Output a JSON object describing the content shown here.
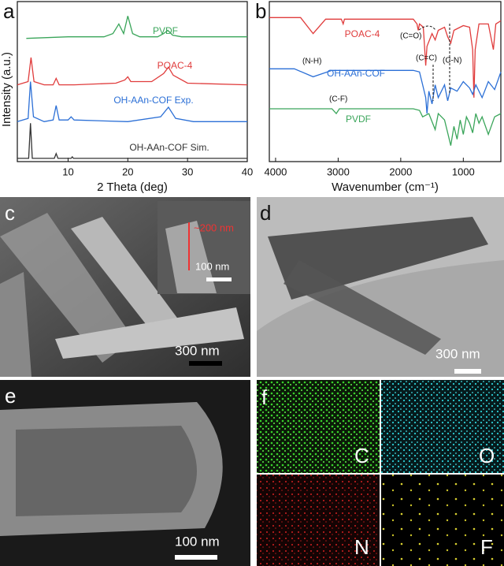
{
  "chart_data": [
    {
      "type": "line",
      "panel": "a",
      "xlabel": "2 Theta (deg)",
      "ylabel": "Intensity (a.u.)",
      "xlim": [
        1.5,
        40
      ],
      "xticks": [
        10,
        20,
        30,
        40
      ],
      "ylim": [
        0,
        100
      ],
      "series": [
        {
          "name": "PVDF",
          "color": "#3aa55a",
          "x": [
            3,
            10,
            16,
            17.5,
            18.5,
            19.3,
            20,
            20.8,
            22,
            25,
            26,
            26.7,
            27.5,
            29,
            40
          ],
          "values": [
            77,
            78,
            78,
            80,
            86,
            80,
            91,
            80,
            78,
            78,
            80,
            82,
            79,
            78,
            78
          ]
        },
        {
          "name": "POAC-4",
          "color": "#e03c3c",
          "x": [
            1.5,
            3.3,
            3.8,
            4.3,
            6,
            7.5,
            8,
            8.5,
            11,
            18,
            19.5,
            20,
            20.5,
            24,
            26,
            26.8,
            27.6,
            30,
            40
          ],
          "values": [
            48,
            50,
            65,
            50,
            48,
            48,
            52,
            48,
            48,
            49,
            51,
            53,
            50,
            50,
            55,
            59,
            54,
            49,
            48
          ]
        },
        {
          "name": "OH-AAn-COF Exp.",
          "color": "#2b6fd6",
          "x": [
            1.5,
            3.3,
            3.7,
            4.2,
            6,
            7.5,
            8,
            8.5,
            10,
            10.5,
            11,
            20,
            25.5,
            26.8,
            28,
            31,
            40
          ],
          "values": [
            25,
            27,
            50,
            28,
            25,
            26,
            35,
            26,
            26,
            28,
            26,
            25,
            28,
            34,
            27,
            25,
            25
          ]
        },
        {
          "name": "OH-AAn-COF Sim.",
          "color": "#333333",
          "x": [
            1.5,
            3.4,
            3.7,
            4.0,
            7.7,
            8,
            8.3,
            10.5,
            10.7,
            10.9,
            40
          ],
          "values": [
            2,
            2,
            24,
            2,
            2,
            5,
            2,
            2,
            3,
            2,
            2
          ]
        }
      ]
    },
    {
      "type": "line",
      "panel": "b",
      "xlabel": "Wavenumber (cm⁻¹)",
      "xlim": [
        4100,
        400
      ],
      "xticks": [
        4000,
        3000,
        2000,
        1000
      ],
      "ylim": [
        0,
        100
      ],
      "annotations": [
        "(C=O)",
        "(C=C)",
        "(C-N)",
        "(N-H)",
        "(C-F)"
      ],
      "series": [
        {
          "name": "POAC-4",
          "color": "#e03c3c",
          "x": [
            4100,
            3600,
            3400,
            3200,
            2950,
            2920,
            2900,
            1800,
            1740,
            1720,
            1700,
            1640,
            1620,
            1600,
            1580,
            1500,
            1450,
            1400,
            1300,
            1250,
            1200,
            1150,
            1000,
            900,
            850,
            830,
            810,
            750,
            600,
            520,
            480,
            400
          ],
          "values": [
            90,
            90,
            80,
            89,
            89,
            86,
            89,
            89,
            86,
            82,
            86,
            84,
            72,
            60,
            72,
            80,
            76,
            82,
            84,
            78,
            74,
            82,
            85,
            84,
            70,
            40,
            70,
            86,
            86,
            70,
            86,
            88
          ]
        },
        {
          "name": "OH-AAn-COF",
          "color": "#2b6fd6",
          "x": [
            4100,
            3700,
            3400,
            3100,
            2000,
            1800,
            1700,
            1650,
            1600,
            1580,
            1550,
            1500,
            1450,
            1400,
            1300,
            1250,
            1200,
            1100,
            1000,
            900,
            850,
            800,
            700,
            600,
            500,
            400
          ],
          "values": [
            58,
            58,
            53,
            57,
            57,
            57,
            56,
            48,
            40,
            30,
            44,
            36,
            48,
            40,
            48,
            38,
            46,
            44,
            50,
            46,
            42,
            48,
            40,
            50,
            45,
            56
          ]
        },
        {
          "name": "PVDF",
          "color": "#3aa55a",
          "x": [
            4100,
            3100,
            3030,
            2980,
            1800,
            1700,
            1650,
            1550,
            1450,
            1400,
            1300,
            1250,
            1200,
            1150,
            1100,
            1050,
            1000,
            950,
            900,
            850,
            800,
            750,
            700,
            600,
            500,
            400
          ],
          "values": [
            33,
            33,
            30,
            33,
            33,
            32,
            28,
            30,
            20,
            30,
            26,
            18,
            10,
            22,
            14,
            26,
            17,
            28,
            24,
            18,
            30,
            24,
            28,
            17,
            28,
            30
          ]
        }
      ]
    }
  ],
  "images": [
    {
      "panel": "c",
      "scale_bar": "300 nm",
      "inset_scale_bar": "100 nm",
      "annotation": "~200 nm"
    },
    {
      "panel": "d",
      "scale_bar": "300 nm"
    },
    {
      "panel": "e",
      "scale_bar": "100 nm"
    },
    {
      "panel": "f",
      "elements": [
        "C",
        "O",
        "N",
        "F"
      ]
    }
  ]
}
